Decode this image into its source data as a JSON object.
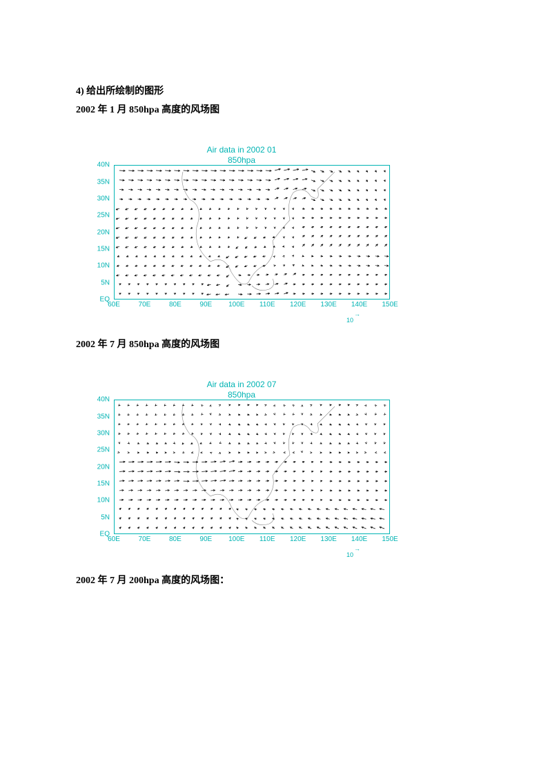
{
  "section_heading": "4) 给出所绘制的图形",
  "caption1": "2002 年 1 月 850hpa 高度的风场图",
  "caption2": "2002 年 7 月 850hpa  高度的风场图",
  "caption3": "2002 年 7 月 200hpa 高度的风场图：",
  "chart1": {
    "title": "Air data in 2002 01",
    "subtitle": "850hpa",
    "type": "vector-field",
    "title_color": "#00b3b3",
    "border_color": "#00b3b3",
    "axis_label_color": "#00b3b3",
    "arrow_color": "#000000",
    "coastline_color": "#888888",
    "xlim": [
      60,
      150
    ],
    "ylim": [
      0,
      40
    ],
    "xtick_step": 10,
    "ytick_step": 5,
    "xtick_suffix": "E",
    "ytick_special": {
      "0": "EQ",
      "default_suffix": "N"
    },
    "reference_vector": 10,
    "grid_cols": 30,
    "grid_rows": 14,
    "seed": 1
  },
  "chart2": {
    "title": "Air data in 2002 07",
    "subtitle": "850hpa",
    "type": "vector-field",
    "title_color": "#00b3b3",
    "border_color": "#00b3b3",
    "axis_label_color": "#00b3b3",
    "arrow_color": "#000000",
    "coastline_color": "#888888",
    "xlim": [
      60,
      150
    ],
    "ylim": [
      0,
      40
    ],
    "xtick_step": 10,
    "ytick_step": 5,
    "xtick_suffix": "E",
    "ytick_special": {
      "0": "EQ",
      "default_suffix": "N"
    },
    "reference_vector": 10,
    "grid_cols": 30,
    "grid_rows": 14,
    "seed": 7
  }
}
